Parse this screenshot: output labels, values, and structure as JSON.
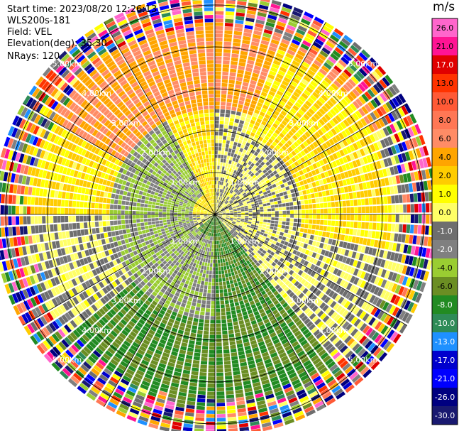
{
  "header": {
    "start_time": "Start time: 2023/08/20 12:26:13",
    "instrument": "WLS200s-181",
    "field": "Field: VEL",
    "elevation": "Elevation(deg): 35.30",
    "nrays": "NRays: 120"
  },
  "chart_data": {
    "type": "heatmap",
    "projection": "polar-ppi",
    "field": "VEL",
    "units": "m/s",
    "n_rays": 120,
    "elevation_deg": 35.3,
    "range_rings_km": [
      1.0,
      2.0,
      3.0,
      4.0,
      5.0
    ],
    "ring_labels": [
      "1.00km",
      "2.00km",
      "3.00km",
      "4.00km",
      "5.00km"
    ],
    "max_range_km": 5.3,
    "colorbar": {
      "label": "m/s",
      "ticks": [
        "26.0",
        "21.0",
        "17.0",
        "13.0",
        "10.0",
        "8.0",
        "6.0",
        "4.0",
        "2.0",
        "1.0",
        "0.0",
        "-1.0",
        "-2.0",
        "-4.0",
        "-6.0",
        "-8.0",
        "-10.0",
        "-13.0",
        "-17.0",
        "-21.0",
        "-26.0",
        "-30.0"
      ],
      "colors": [
        "#ff66cc",
        "#ff1493",
        "#e00000",
        "#ff3300",
        "#ff5a36",
        "#ff7755",
        "#ff8c66",
        "#ffa500",
        "#ffcc00",
        "#ffff00",
        "#ffff66",
        "#6e6e6e",
        "#808080",
        "#9acd32",
        "#6b8e23",
        "#228b22",
        "#2e8b57",
        "#1e90ff",
        "#0000cd",
        "#0000ff",
        "#000080",
        "#191970"
      ]
    },
    "velocity_field_m_s": {
      "regions": [
        {
          "azimuth_deg": [
            270,
            360
          ],
          "range_km": [
            0.0,
            5.0
          ],
          "value": 2.0
        },
        {
          "azimuth_deg": [
            300,
            60
          ],
          "range_km": [
            2.5,
            4.5
          ],
          "value": 6.0
        },
        {
          "azimuth_deg": [
            20,
            100
          ],
          "range_km": [
            2.0,
            4.2
          ],
          "value": 2.0
        },
        {
          "azimuth_deg": [
            40,
            140
          ],
          "range_km": [
            0.4,
            2.0
          ],
          "value": 0.0
        },
        {
          "azimuth_deg": [
            140,
            230
          ],
          "range_km": [
            0.0,
            5.0
          ],
          "value": -6.0
        },
        {
          "azimuth_deg": [
            180,
            330
          ],
          "range_km": [
            0.5,
            2.5
          ],
          "value": -2.0
        }
      ],
      "noise_beyond_km": 4.3
    }
  }
}
